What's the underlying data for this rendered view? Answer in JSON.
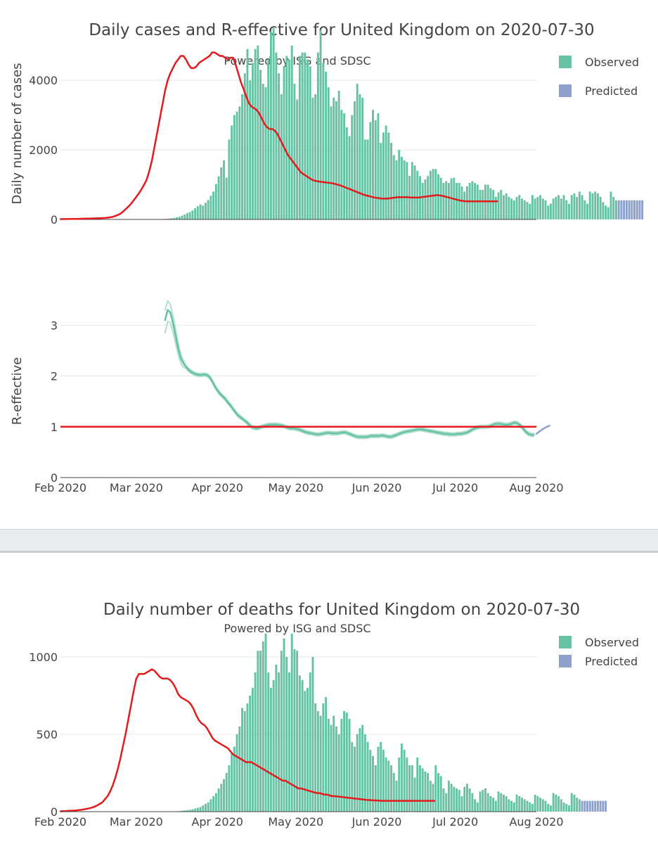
{
  "colors": {
    "observed": "#66c2a5",
    "predicted": "#8da0cb",
    "trend": "#e41a1c",
    "r_band": "#a8dcc8",
    "grid": "#e5e5e5",
    "text": "#444444"
  },
  "months": [
    "Feb 2020",
    "Mar 2020",
    "Apr 2020",
    "May 2020",
    "Jun 2020",
    "Jul 2020",
    "Aug 2020"
  ],
  "legend": {
    "observed": "Observed",
    "predicted": "Predicted"
  },
  "chart_data": [
    {
      "id": "cases",
      "type": "bar",
      "title": "Daily cases and R-effective for United Kingdom on 2020-07-30",
      "subtitle": "Powered by ISG and SDSC",
      "xlabel": "",
      "ylabel": "Daily number of cases",
      "yticks": [
        0,
        2000,
        4000
      ],
      "ylim": [
        0,
        5500
      ],
      "x_start": "2020-02-01",
      "observed_first_day": 38,
      "observed": [
        10,
        15,
        20,
        25,
        35,
        45,
        60,
        80,
        110,
        140,
        180,
        210,
        260,
        320,
        380,
        430,
        400,
        480,
        560,
        680,
        800,
        1020,
        1240,
        1500,
        1700,
        1200,
        2300,
        2700,
        3000,
        3100,
        3250,
        3600,
        4200,
        4900,
        4000,
        4500,
        4900,
        5000,
        4300,
        3900,
        3800,
        4600,
        5400,
        5500,
        4800,
        4200,
        3600,
        4400,
        4700,
        4600,
        5000,
        3900,
        3450,
        4700,
        4800,
        4800,
        4600,
        4400,
        3500,
        3600,
        4800,
        5450,
        4500,
        4250,
        3800,
        3250,
        3500,
        3400,
        3700,
        3150,
        3050,
        2650,
        2400,
        3000,
        3400,
        3900,
        3600,
        3500,
        2300,
        2300,
        2800,
        3150,
        2850,
        3050,
        2200,
        2500,
        2700,
        2500,
        2200,
        1850,
        1700,
        2000,
        1800,
        1700,
        1650,
        1250,
        1650,
        1550,
        1400,
        1250,
        1050,
        1150,
        1250,
        1400,
        1450,
        1450,
        1300,
        1200,
        1050,
        1100,
        1050,
        1180,
        1200,
        1050,
        1050,
        950,
        800,
        950,
        1050,
        1100,
        1050,
        1000,
        850,
        850,
        1000,
        1000,
        900,
        850,
        650,
        780,
        850,
        700,
        750,
        650,
        600,
        550,
        650,
        700,
        600,
        550,
        500,
        450,
        700,
        600,
        650,
        700,
        600,
        550,
        400,
        450,
        600,
        650,
        700,
        600,
        700,
        550,
        450,
        700,
        750,
        650,
        800,
        700,
        550,
        450,
        800,
        750,
        800,
        750,
        650,
        500,
        400,
        350,
        800,
        650,
        550
      ],
      "predicted": [
        550,
        550,
        550,
        550,
        550,
        550,
        550,
        550,
        550,
        550
      ],
      "trend": [
        10,
        11,
        12,
        13,
        14,
        15,
        16,
        18,
        20,
        22,
        24,
        26,
        28,
        30,
        33,
        36,
        40,
        44,
        50,
        60,
        75,
        100,
        130,
        170,
        230,
        300,
        370,
        450,
        550,
        650,
        750,
        870,
        1000,
        1150,
        1400,
        1700,
        2100,
        2500,
        2900,
        3300,
        3700,
        4000,
        4200,
        4350,
        4500,
        4600,
        4700,
        4700,
        4600,
        4450,
        4350,
        4350,
        4400,
        4500,
        4550,
        4600,
        4650,
        4700,
        4800,
        4800,
        4750,
        4700,
        4700,
        4650,
        4600,
        4650,
        4650,
        4450,
        4200,
        3950,
        3750,
        3550,
        3350,
        3250,
        3200,
        3150,
        3050,
        2900,
        2750,
        2650,
        2600,
        2600,
        2550,
        2450,
        2300,
        2150,
        2000,
        1850,
        1750,
        1650,
        1550,
        1450,
        1350,
        1300,
        1250,
        1200,
        1150,
        1120,
        1100,
        1090,
        1080,
        1070,
        1060,
        1050,
        1040,
        1020,
        1000,
        980,
        950,
        920,
        890,
        860,
        830,
        800,
        770,
        740,
        710,
        690,
        670,
        650,
        630,
        620,
        610,
        600,
        600,
        600,
        610,
        620,
        630,
        640,
        640,
        640,
        640,
        640,
        630,
        630,
        630,
        630,
        640,
        650,
        660,
        670,
        680,
        690,
        700,
        690,
        680,
        660,
        640,
        620,
        600,
        580,
        560,
        540,
        530,
        520,
        520,
        520,
        520,
        520,
        520,
        520,
        520,
        520,
        520,
        520,
        520,
        520
      ]
    },
    {
      "id": "reff",
      "type": "line",
      "title": "",
      "xlabel": "",
      "ylabel": "R-effective",
      "yticks": [
        0,
        1,
        2,
        3
      ],
      "ylim": [
        0,
        3.6
      ],
      "reference_line": 1,
      "r_start_day": 40,
      "r_mean": [
        3.1,
        3.3,
        3.25,
        3.05,
        2.8,
        2.55,
        2.35,
        2.25,
        2.18,
        2.12,
        2.08,
        2.05,
        2.03,
        2.02,
        2.02,
        2.03,
        2.02,
        1.98,
        1.9,
        1.8,
        1.72,
        1.65,
        1.6,
        1.55,
        1.48,
        1.42,
        1.35,
        1.28,
        1.22,
        1.18,
        1.14,
        1.1,
        1.05,
        1.0,
        0.98,
        0.97,
        0.98,
        1.0,
        1.02,
        1.03,
        1.04,
        1.04,
        1.04,
        1.04,
        1.03,
        1.02,
        1.0,
        0.98,
        0.97,
        0.97,
        0.96,
        0.95,
        0.93,
        0.91,
        0.89,
        0.88,
        0.87,
        0.86,
        0.85,
        0.85,
        0.86,
        0.87,
        0.88,
        0.88,
        0.87,
        0.87,
        0.87,
        0.88,
        0.89,
        0.89,
        0.87,
        0.85,
        0.83,
        0.81,
        0.8,
        0.8,
        0.8,
        0.8,
        0.81,
        0.82,
        0.82,
        0.82,
        0.82,
        0.83,
        0.82,
        0.81,
        0.8,
        0.81,
        0.83,
        0.85,
        0.87,
        0.89,
        0.9,
        0.91,
        0.92,
        0.93,
        0.94,
        0.95,
        0.95,
        0.94,
        0.93,
        0.92,
        0.91,
        0.9,
        0.89,
        0.88,
        0.87,
        0.86,
        0.86,
        0.85,
        0.85,
        0.85,
        0.86,
        0.86,
        0.87,
        0.88,
        0.9,
        0.93,
        0.96,
        0.98,
        0.99,
        1.0,
        1.0,
        1.0,
        1.01,
        1.03,
        1.05,
        1.06,
        1.06,
        1.05,
        1.04,
        1.04,
        1.05,
        1.07,
        1.08,
        1.06,
        1.02,
        0.96,
        0.9,
        0.86,
        0.84,
        0.84
      ],
      "r_predicted": [
        0.86,
        0.9,
        0.94,
        0.97,
        1.0,
        1.02
      ]
    },
    {
      "id": "deaths",
      "type": "bar",
      "title": "Daily number of deaths for United Kingdom on 2020-07-30",
      "subtitle": "Powered by ISG and SDSC",
      "xlabel": "",
      "ylabel": "",
      "yticks": [
        0,
        500,
        1000
      ],
      "ylim": [
        0,
        1200
      ],
      "observed_first_day": 43,
      "observed": [
        2,
        3,
        4,
        6,
        8,
        10,
        12,
        15,
        20,
        25,
        30,
        40,
        50,
        60,
        80,
        100,
        120,
        150,
        180,
        210,
        250,
        300,
        380,
        420,
        500,
        550,
        670,
        650,
        700,
        750,
        800,
        900,
        1040,
        1040,
        1100,
        1150,
        900,
        800,
        850,
        950,
        900,
        1040,
        1120,
        1000,
        900,
        1150,
        1050,
        1040,
        880,
        850,
        780,
        800,
        900,
        1000,
        700,
        650,
        620,
        700,
        740,
        600,
        560,
        620,
        550,
        500,
        600,
        650,
        640,
        600,
        450,
        420,
        500,
        540,
        560,
        500,
        450,
        400,
        360,
        300,
        420,
        450,
        400,
        350,
        330,
        300,
        250,
        200,
        350,
        440,
        400,
        350,
        300,
        300,
        220,
        350,
        300,
        280,
        260,
        250,
        200,
        180,
        300,
        250,
        230,
        150,
        120,
        200,
        180,
        160,
        150,
        140,
        100,
        160,
        180,
        150,
        120,
        80,
        60,
        130,
        140,
        150,
        120,
        100,
        90,
        70,
        130,
        120,
        110,
        100,
        80,
        70,
        60,
        110,
        100,
        90,
        80,
        70,
        60,
        50,
        110,
        100,
        90,
        80,
        70,
        50,
        40,
        120,
        110,
        100,
        80,
        60,
        50,
        40,
        120,
        110,
        90,
        80
      ],
      "predicted": [
        70,
        70,
        70,
        70,
        70,
        70,
        70,
        70,
        70,
        70
      ],
      "trend": [
        2,
        3,
        4,
        5,
        6,
        7,
        8,
        10,
        12,
        15,
        18,
        22,
        26,
        32,
        40,
        50,
        60,
        80,
        100,
        130,
        170,
        220,
        280,
        350,
        430,
        510,
        600,
        690,
        780,
        860,
        890,
        890,
        890,
        900,
        910,
        920,
        910,
        890,
        870,
        860,
        860,
        860,
        850,
        830,
        800,
        760,
        740,
        730,
        720,
        710,
        690,
        660,
        620,
        590,
        570,
        560,
        540,
        510,
        480,
        460,
        450,
        440,
        430,
        420,
        410,
        390,
        370,
        360,
        350,
        340,
        330,
        320,
        320,
        320,
        310,
        300,
        290,
        280,
        270,
        260,
        250,
        240,
        230,
        220,
        210,
        200,
        200,
        190,
        180,
        170,
        160,
        150,
        150,
        145,
        140,
        135,
        130,
        125,
        120,
        120,
        115,
        110,
        110,
        105,
        100,
        100,
        98,
        96,
        94,
        92,
        90,
        88,
        86,
        84,
        82,
        80,
        78,
        76,
        75,
        74,
        73,
        72,
        71,
        70,
        70,
        70,
        70,
        70,
        70,
        70,
        70,
        70,
        70,
        70,
        70,
        70,
        70,
        70,
        70,
        70,
        70,
        70,
        70,
        70
      ]
    }
  ]
}
